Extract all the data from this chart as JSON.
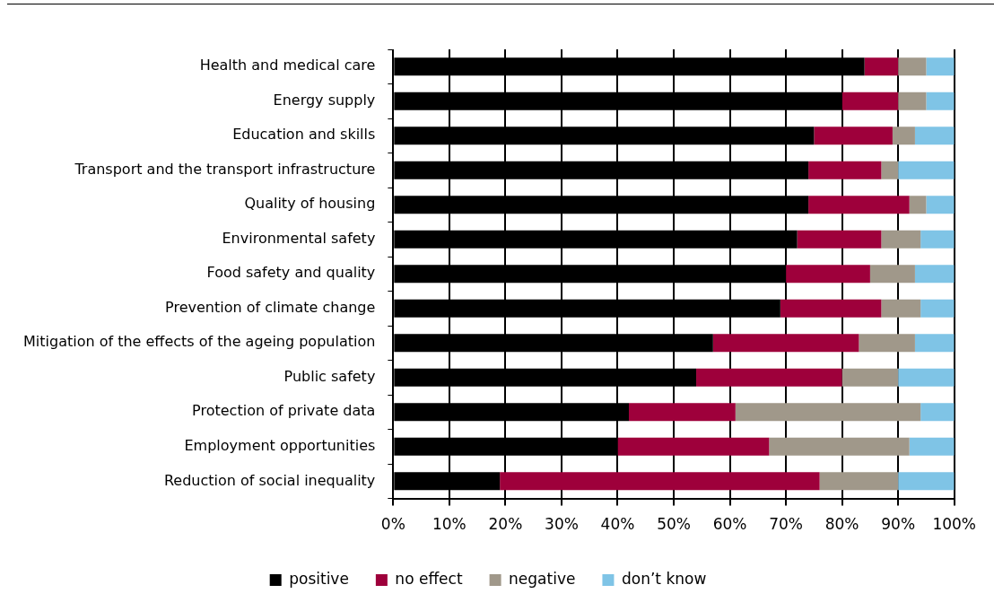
{
  "chart_data": {
    "type": "bar",
    "orientation": "horizontal",
    "stacked": true,
    "categories": [
      "Health and medical care",
      "Energy supply",
      "Education and skills",
      "Transport and the transport infrastructure",
      "Quality of housing",
      "Environmental safety",
      "Food safety and quality",
      "Prevention of climate change",
      "Mitigation of the effects of the ageing population",
      "Public safety",
      "Protection of private data",
      "Employment opportunities",
      "Reduction of social inequality"
    ],
    "series": [
      {
        "name": "positive",
        "color": "#000000",
        "values": [
          84,
          80,
          75,
          74,
          74,
          72,
          70,
          69,
          57,
          54,
          42,
          40,
          19
        ]
      },
      {
        "name": "no effect",
        "color": "#9e003b",
        "values": [
          6,
          10,
          14,
          13,
          18,
          15,
          15,
          18,
          26,
          26,
          19,
          27,
          57
        ]
      },
      {
        "name": "negative",
        "color": "#a0988a",
        "values": [
          5,
          5,
          4,
          3,
          3,
          7,
          8,
          7,
          10,
          10,
          33,
          25,
          14
        ]
      },
      {
        "name": "don’t know",
        "color": "#7fc4e6",
        "values": [
          5,
          5,
          7,
          10,
          5,
          6,
          7,
          6,
          7,
          10,
          6,
          8,
          10
        ]
      }
    ],
    "xlim": [
      0,
      100
    ],
    "xticks": [
      {
        "value": 0,
        "label": "0%"
      },
      {
        "value": 10,
        "label": "10%"
      },
      {
        "value": 20,
        "label": "20%"
      },
      {
        "value": 30,
        "label": "30%"
      },
      {
        "value": 40,
        "label": "40%"
      },
      {
        "value": 50,
        "label": "50%"
      },
      {
        "value": 60,
        "label": "60%"
      },
      {
        "value": 70,
        "label": "70%"
      },
      {
        "value": 80,
        "label": "80%"
      },
      {
        "value": 90,
        "label": "90%"
      },
      {
        "value": 100,
        "label": "100%"
      }
    ],
    "grid": "x",
    "legend": "bottom"
  }
}
